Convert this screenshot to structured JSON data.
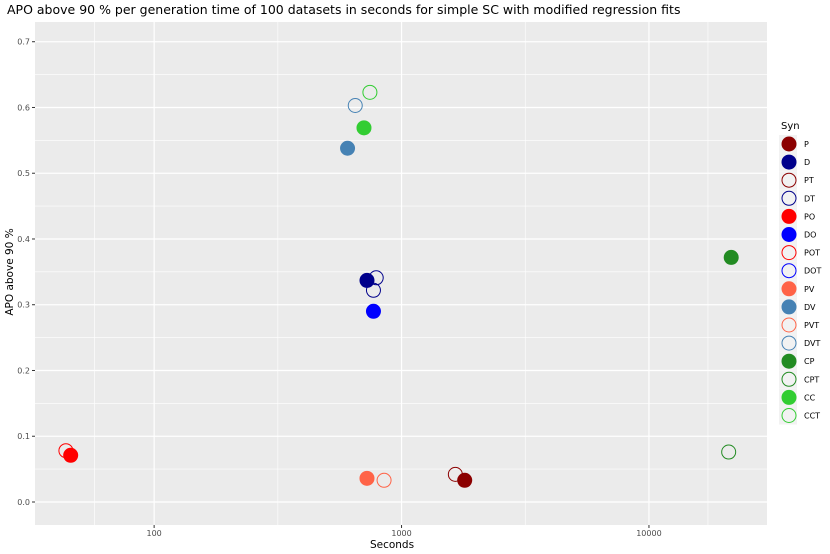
{
  "chart_data": {
    "type": "scatter",
    "title": "APO above 90 % per generation time of 100 datasets in seconds for simple SC with modified regression fits",
    "xlabel": "Seconds",
    "ylabel": "APO above 90 %",
    "x_scale": "log10",
    "xlim": [
      33,
      30000
    ],
    "ylim": [
      -0.035,
      0.73
    ],
    "x_ticks": [
      {
        "value": 100,
        "label": "100"
      },
      {
        "value": 1000,
        "label": "1000"
      },
      {
        "value": 10000,
        "label": "10000"
      }
    ],
    "y_ticks": [
      {
        "value": 0.0,
        "label": "0.0"
      },
      {
        "value": 0.1,
        "label": "0.1"
      },
      {
        "value": 0.2,
        "label": "0.2"
      },
      {
        "value": 0.3,
        "label": "0.3"
      },
      {
        "value": 0.4,
        "label": "0.4"
      },
      {
        "value": 0.5,
        "label": "0.5"
      },
      {
        "value": 0.6,
        "label": "0.6"
      },
      {
        "value": 0.7,
        "label": "0.7"
      }
    ],
    "grid": true,
    "legend": {
      "title": "Syn",
      "position": "right"
    },
    "series": [
      {
        "name": "P",
        "color": "#8B0000",
        "filled": true,
        "points": [
          {
            "x": 1800,
            "y": 0.033
          }
        ]
      },
      {
        "name": "D",
        "color": "#00008B",
        "filled": true,
        "points": [
          {
            "x": 725,
            "y": 0.337
          }
        ]
      },
      {
        "name": "PT",
        "color": "#8B0000",
        "filled": false,
        "points": [
          {
            "x": 1650,
            "y": 0.042
          }
        ]
      },
      {
        "name": "DT",
        "color": "#00008B",
        "filled": false,
        "points": [
          {
            "x": 790,
            "y": 0.341
          },
          {
            "x": 770,
            "y": 0.322
          }
        ]
      },
      {
        "name": "PO",
        "color": "#FF0000",
        "filled": true,
        "points": [
          {
            "x": 46,
            "y": 0.071
          }
        ]
      },
      {
        "name": "DO",
        "color": "#0000FF",
        "filled": true,
        "points": [
          {
            "x": 770,
            "y": 0.29
          }
        ]
      },
      {
        "name": "POT",
        "color": "#FF0000",
        "filled": false,
        "points": [
          {
            "x": 44,
            "y": 0.078
          }
        ]
      },
      {
        "name": "DOT",
        "color": "#0000FF",
        "filled": false,
        "points": []
      },
      {
        "name": "PV",
        "color": "#FF6347",
        "filled": true,
        "points": [
          {
            "x": 725,
            "y": 0.036
          }
        ]
      },
      {
        "name": "DV",
        "color": "#4682B4",
        "filled": true,
        "points": [
          {
            "x": 605,
            "y": 0.538
          }
        ]
      },
      {
        "name": "PVT",
        "color": "#FF6347",
        "filled": false,
        "points": [
          {
            "x": 850,
            "y": 0.033
          }
        ]
      },
      {
        "name": "DVT",
        "color": "#4682B4",
        "filled": false,
        "points": [
          {
            "x": 650,
            "y": 0.603
          }
        ]
      },
      {
        "name": "CP",
        "color": "#228B22",
        "filled": true,
        "points": [
          {
            "x": 21500,
            "y": 0.372
          }
        ]
      },
      {
        "name": "CPT",
        "color": "#228B22",
        "filled": false,
        "points": [
          {
            "x": 21000,
            "y": 0.076
          }
        ]
      },
      {
        "name": "CC",
        "color": "#32CD32",
        "filled": true,
        "points": [
          {
            "x": 705,
            "y": 0.569
          }
        ]
      },
      {
        "name": "CCT",
        "color": "#32CD32",
        "filled": false,
        "points": [
          {
            "x": 745,
            "y": 0.623
          }
        ]
      }
    ]
  }
}
